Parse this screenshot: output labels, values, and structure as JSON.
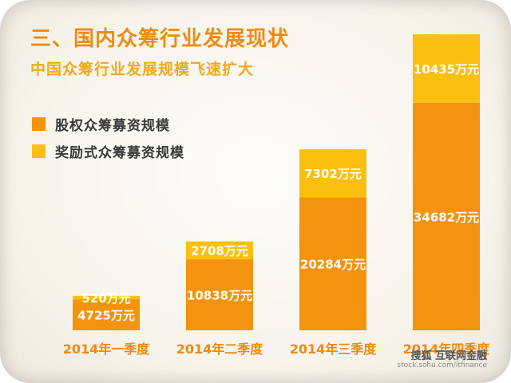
{
  "title": "三、国内众筹行业发展现状",
  "subtitle": "中国众筹行业发展规模飞速扩大",
  "footer": {
    "brand": "搜狐 互联网金融",
    "url": "stock.sohu.com/itfinance"
  },
  "colors": {
    "equity": "#f4930e",
    "reward": "#fbbf12",
    "axis_label": "#f08a10"
  },
  "chart_data": {
    "type": "bar",
    "stacked": true,
    "categories": [
      "2014年一季度",
      "2014年二季度",
      "2014年三季度",
      "2014年四季度"
    ],
    "series": [
      {
        "name": "股权众筹募资规模",
        "values": [
          4725,
          10838,
          20284,
          34682
        ],
        "labels": [
          "4725万元",
          "10838万元",
          "20284万元",
          "34682万元"
        ],
        "color": "#f4930e"
      },
      {
        "name": "奖励式众筹募资规模",
        "values": [
          520,
          2708,
          7302,
          10435
        ],
        "labels": [
          "520万元",
          "2708万元",
          "7302万元",
          "10435万元"
        ],
        "color": "#fbbf12"
      }
    ],
    "ylim": [
      0,
      45117
    ],
    "grid": false,
    "legend": "top-left",
    "unit": "万元"
  }
}
